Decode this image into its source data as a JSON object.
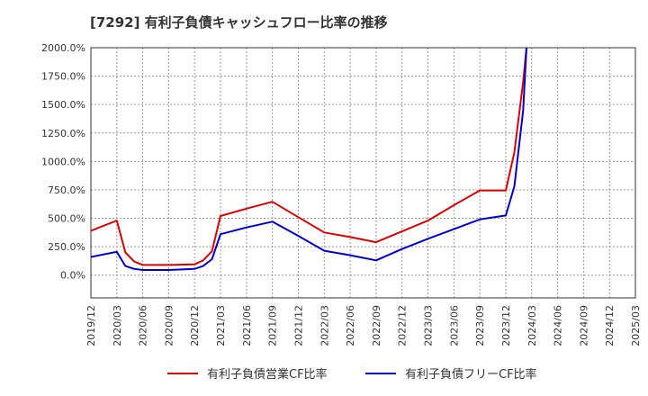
{
  "chart_data": {
    "type": "line",
    "title": "[7292]  有利子負債キャッシュフロー比率の推移",
    "xlabel": "",
    "ylabel": "",
    "ylim": [
      -200,
      2000
    ],
    "y_ticks": [
      0,
      250,
      500,
      750,
      1000,
      1250,
      1500,
      1750,
      2000
    ],
    "y_tick_labels": [
      "0.0%",
      "250.0%",
      "500.0%",
      "750.0%",
      "1000.0%",
      "1250.0%",
      "1500.0%",
      "1750.0%",
      "2000.0%"
    ],
    "x_tick_labels": [
      "2019/12",
      "2020/03",
      "2020/06",
      "2020/09",
      "2020/12",
      "2021/03",
      "2021/06",
      "2021/09",
      "2021/12",
      "2022/03",
      "2022/06",
      "2022/09",
      "2022/12",
      "2023/03",
      "2023/06",
      "2023/09",
      "2023/12",
      "2024/03",
      "2024/06",
      "2024/09",
      "2024/12",
      "2025/03"
    ],
    "grid": true,
    "legend_position": "bottom",
    "series": [
      {
        "name": "有利子負債営業CF比率",
        "color": "#dd0000",
        "points": [
          [
            0,
            390
          ],
          [
            1,
            480
          ],
          [
            1.33,
            200
          ],
          [
            1.67,
            120
          ],
          [
            2,
            90
          ],
          [
            3,
            90
          ],
          [
            4,
            95
          ],
          [
            4.33,
            130
          ],
          [
            4.67,
            210
          ],
          [
            5,
            520
          ],
          [
            6,
            585
          ],
          [
            7,
            645
          ],
          [
            8,
            510
          ],
          [
            9,
            375
          ],
          [
            10,
            335
          ],
          [
            11,
            290
          ],
          [
            12,
            385
          ],
          [
            13,
            480
          ],
          [
            14,
            615
          ],
          [
            15,
            745
          ],
          [
            16,
            745
          ],
          [
            16.33,
            1080
          ],
          [
            16.67,
            1700
          ],
          [
            16.8,
            2000
          ]
        ]
      },
      {
        "name": "有利子負債フリーCF比率",
        "color": "#0000cc",
        "points": [
          [
            0,
            160
          ],
          [
            1,
            205
          ],
          [
            1.33,
            80
          ],
          [
            1.67,
            55
          ],
          [
            2,
            45
          ],
          [
            3,
            45
          ],
          [
            4,
            55
          ],
          [
            4.33,
            80
          ],
          [
            4.67,
            140
          ],
          [
            5,
            360
          ],
          [
            6,
            420
          ],
          [
            7,
            470
          ],
          [
            8,
            345
          ],
          [
            9,
            215
          ],
          [
            10,
            175
          ],
          [
            11,
            130
          ],
          [
            12,
            230
          ],
          [
            13,
            320
          ],
          [
            14,
            405
          ],
          [
            15,
            490
          ],
          [
            16,
            525
          ],
          [
            16.33,
            780
          ],
          [
            16.67,
            1450
          ],
          [
            16.8,
            2000
          ]
        ]
      }
    ]
  }
}
